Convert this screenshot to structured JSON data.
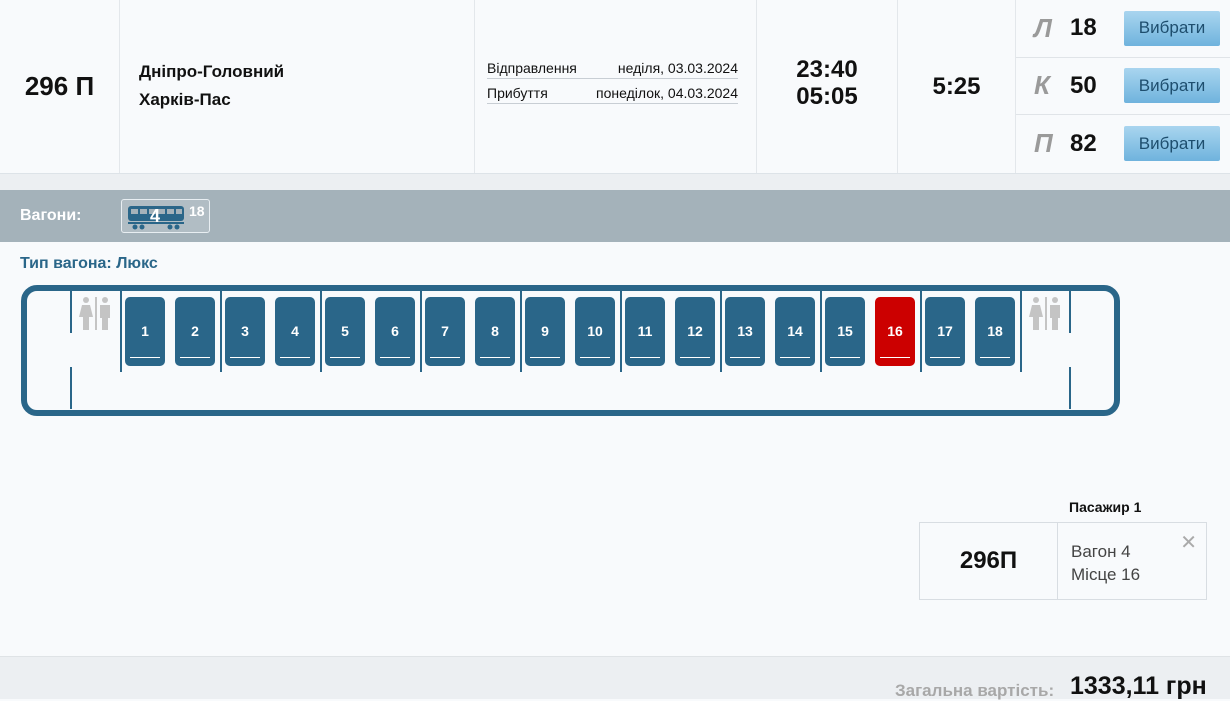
{
  "train": {
    "number": "296 П",
    "from": "Дніпро-Головний",
    "to": "Харків-Пас",
    "departure_label": "Відправлення",
    "departure_date": "неділя, 03.03.2024",
    "arrival_label": "Прибуття",
    "arrival_date": "понеділок, 04.03.2024",
    "departure_time": "23:40",
    "arrival_time": "05:05",
    "duration": "5:25"
  },
  "classes": [
    {
      "letter": "Л",
      "free": "18",
      "button": "Вибрати"
    },
    {
      "letter": "К",
      "free": "50",
      "button": "Вибрати"
    },
    {
      "letter": "П",
      "free": "82",
      "button": "Вибрати"
    }
  ],
  "wagons": {
    "label": "Вагони:",
    "items": [
      {
        "number": "4",
        "free": "18"
      }
    ]
  },
  "wagon_type": "Тип вагона: Люкс",
  "seats": [
    "1",
    "2",
    "3",
    "4",
    "5",
    "6",
    "7",
    "8",
    "9",
    "10",
    "11",
    "12",
    "13",
    "14",
    "15",
    "16",
    "17",
    "18"
  ],
  "selected_seat": "16",
  "colors": {
    "seat": "#2a6689",
    "selected": "#cc0000",
    "button": "#6fb3dd"
  },
  "passenger": {
    "title": "Пасажир 1",
    "train": "296П",
    "wagon": "Вагон 4",
    "seat": "Місце 16"
  },
  "total": {
    "label": "Загальна вартість:",
    "value": "1333,11 грн"
  }
}
